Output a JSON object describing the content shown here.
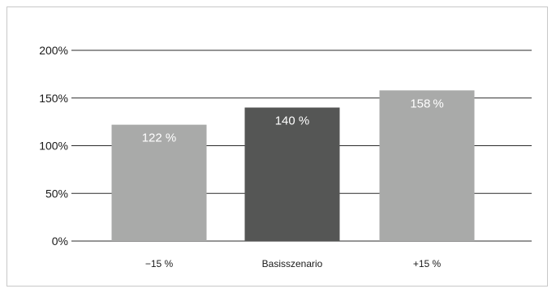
{
  "chart_data": {
    "type": "bar",
    "categories": [
      "−15 %",
      "Basisszenario",
      "+15 %"
    ],
    "values": [
      122,
      140,
      158
    ],
    "data_labels": [
      "122 %",
      "140 %",
      "158 %"
    ],
    "bar_colors": [
      "#a9aaa9",
      "#555655",
      "#a9aaa9"
    ],
    "grid_color": "#2b2b2b",
    "yticks": [
      0,
      50,
      100,
      150,
      200
    ],
    "ytick_labels": [
      "0%",
      "50%",
      "100%",
      "150%",
      "200%"
    ],
    "ylim": [
      0,
      200
    ],
    "title": "",
    "xlabel": "",
    "ylabel": "",
    "grid": true,
    "legend": "none"
  }
}
